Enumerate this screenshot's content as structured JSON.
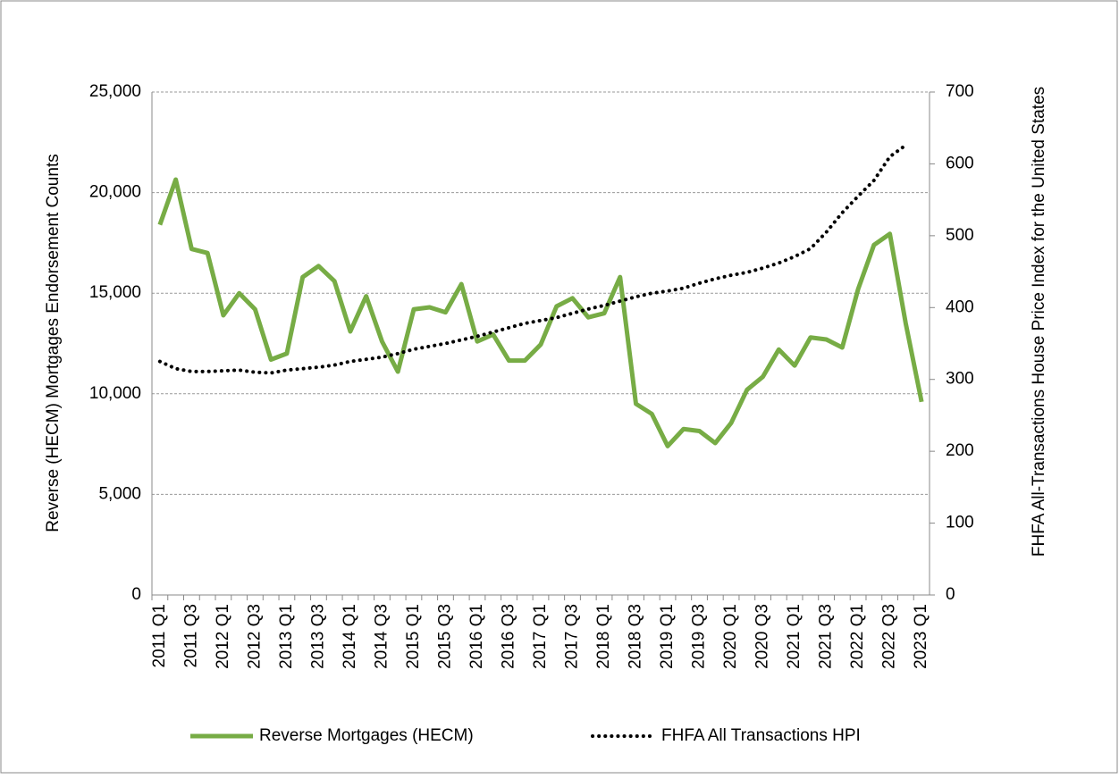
{
  "chart_data": {
    "type": "line",
    "y_label": "Reverse (HECM) Mortgages Endorsement Counts",
    "y2_label": "FHFA All-Transactions House Price Index for the United States",
    "categories": [
      "2011 Q1",
      null,
      "2011 Q3",
      null,
      "2012 Q1",
      null,
      "2012 Q3",
      null,
      "2013 Q1",
      null,
      "2013 Q3",
      null,
      "2014 Q1",
      null,
      "2014 Q3",
      null,
      "2015 Q1",
      null,
      "2015 Q3",
      null,
      "2016 Q1",
      null,
      "2016 Q3",
      null,
      "2017 Q1",
      null,
      "2017 Q3",
      null,
      "2018 Q1",
      null,
      "2018 Q3",
      null,
      "2019 Q1",
      null,
      "2019 Q3",
      null,
      "2020 Q1",
      null,
      "2020 Q3",
      null,
      "2021 Q1",
      null,
      "2021 Q3",
      null,
      "2022 Q1",
      null,
      "2022 Q3",
      null,
      "2023 Q1"
    ],
    "series": [
      {
        "name": "Reverse Mortgages (HECM)",
        "color": "#77ac45",
        "style": "solid",
        "values": [
          18400,
          20650,
          17200,
          17000,
          13900,
          15000,
          14200,
          11700,
          12000,
          15800,
          16350,
          15600,
          13100,
          14850,
          12600,
          11100,
          14200,
          14300,
          14050,
          15450,
          12600,
          12950,
          11650,
          11650,
          12450,
          14350,
          14750,
          13800,
          14000,
          15800,
          9500,
          9000,
          7400,
          8250,
          8150,
          7550,
          8550,
          10200,
          10850,
          12200,
          11400,
          12800,
          12700,
          12300,
          15200,
          17400,
          17950,
          13500,
          9600
        ]
      },
      {
        "name": "FHFA All Transactions HPI",
        "color": "#000000",
        "style": "dotted",
        "axis": "y2",
        "values": [
          325,
          315,
          311,
          311,
          312,
          313,
          310,
          309,
          313,
          315,
          317,
          320,
          325,
          328,
          331,
          336,
          342,
          346,
          350,
          355,
          360,
          366,
          372,
          378,
          382,
          386,
          392,
          398,
          403,
          409,
          415,
          420,
          423,
          427,
          434,
          440,
          445,
          449,
          455,
          462,
          471,
          482,
          505,
          532,
          555,
          577,
          610,
          626,
          null
        ]
      }
    ],
    "ylim": [
      0,
      25000
    ],
    "yticks": [
      0,
      {
        "value": 5000,
        "label": "5,000"
      },
      {
        "value": 10000,
        "label": "10,000"
      },
      {
        "value": 15000,
        "label": "15,000"
      },
      {
        "value": 20000,
        "label": "20,000"
      },
      {
        "value": 25000,
        "label": "25,000"
      }
    ],
    "y2lim": [
      0,
      700
    ],
    "y2ticks": [
      0,
      100,
      200,
      300,
      400,
      500,
      600,
      700
    ],
    "grid": true,
    "legend": "bottom"
  }
}
